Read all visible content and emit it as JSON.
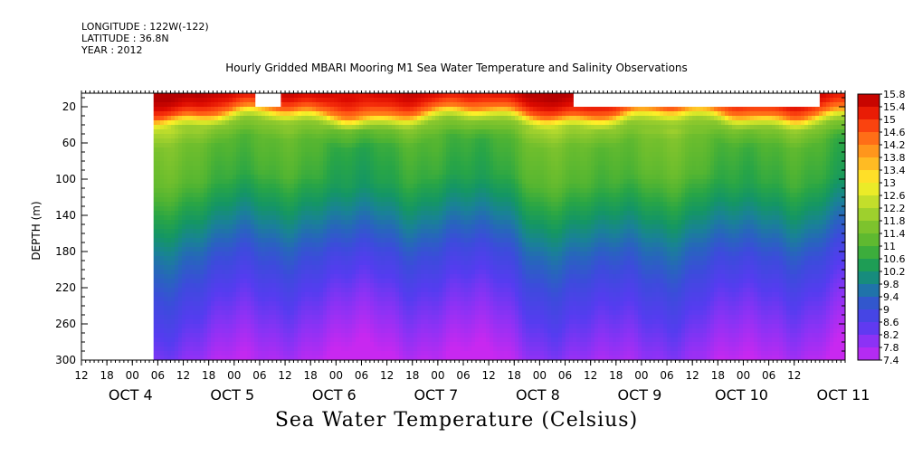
{
  "header": {
    "longitude": "LONGITUDE : 122W(-122)",
    "latitude": "LATITUDE : 36.8N",
    "year": "YEAR : 2012"
  },
  "chart_data": {
    "type": "heatmap",
    "title": "Hourly Gridded MBARI Mooring M1 Sea Water Temperature and Salinity Observations",
    "xlabel": "Sea Water Temperature (Celsius)",
    "ylabel": "DEPTH (m)",
    "x_hour_tick_labels": [
      "12",
      "18",
      "00",
      "06",
      "12",
      "18",
      "00",
      "06",
      "12",
      "18",
      "00",
      "06",
      "12",
      "18",
      "00",
      "06",
      "12",
      "18",
      "00",
      "06",
      "12",
      "18",
      "00",
      "06",
      "12",
      "18",
      "00",
      "06",
      "12"
    ],
    "x_day_labels": [
      "OCT 4",
      "OCT 5",
      "OCT 6",
      "OCT 7",
      "OCT 8",
      "OCT 9",
      "OCT 10",
      "OCT 11"
    ],
    "x_range_hours": [
      -12,
      168
    ],
    "y_tick_labels": [
      "20",
      "60",
      "100",
      "140",
      "180",
      "220",
      "260",
      "300"
    ],
    "ylim": [
      300,
      5
    ],
    "colorbar_labels": [
      "15.8",
      "15.4",
      "15",
      "14.6",
      "14.2",
      "13.8",
      "13.4",
      "13",
      "12.6",
      "12.2",
      "11.8",
      "11.4",
      "11",
      "10.6",
      "10.2",
      "9.8",
      "9.4",
      "9",
      "8.6",
      "8.2",
      "7.8",
      "7.4"
    ],
    "colorbar_range": [
      7.4,
      15.8
    ],
    "temperature_profile": [
      {
        "depth": 5,
        "temp": 15.6
      },
      {
        "depth": 15,
        "temp": 15.2
      },
      {
        "depth": 25,
        "temp": 14.4
      },
      {
        "depth": 32,
        "temp": 12.8
      },
      {
        "depth": 40,
        "temp": 11.8
      },
      {
        "depth": 60,
        "temp": 11.1
      },
      {
        "depth": 100,
        "temp": 10.8
      },
      {
        "depth": 140,
        "temp": 10.0
      },
      {
        "depth": 180,
        "temp": 9.2
      },
      {
        "depth": 220,
        "temp": 8.6
      },
      {
        "depth": 260,
        "temp": 8.1
      },
      {
        "depth": 300,
        "temp": 7.6
      }
    ],
    "data_start_hour": 5,
    "missing_regions": [
      {
        "x0": -12,
        "x1": 5,
        "y0": 5,
        "y1": 300
      },
      {
        "x0": 29,
        "x1": 35,
        "y0": 5,
        "y1": 20
      },
      {
        "x0": 104,
        "x1": 162,
        "y0": 5,
        "y1": 20
      }
    ],
    "colors": {
      "missing": "#ffffff",
      "frame": "#000000"
    }
  }
}
